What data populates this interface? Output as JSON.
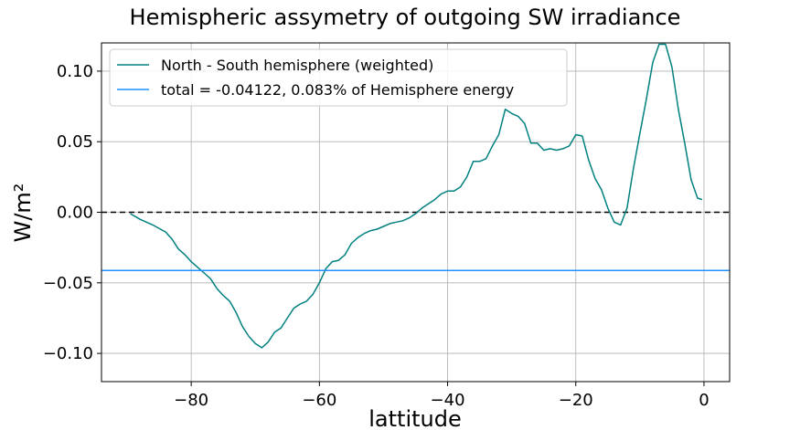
{
  "chart_data": {
    "type": "line",
    "title": "Hemispheric assymetry of outgoing SW irradiance",
    "xlabel": "lattitude",
    "ylabel": "W/m²",
    "xlim": [
      -94,
      4
    ],
    "ylim": [
      -0.12,
      0.12
    ],
    "grid": true,
    "legend_position": "top-left",
    "xticks": [
      -80,
      -60,
      -40,
      -20,
      0
    ],
    "xtick_labels": [
      "−80",
      "−60",
      "−40",
      "−20",
      "0"
    ],
    "yticks": [
      -0.1,
      -0.05,
      0.0,
      0.05,
      0.1
    ],
    "ytick_labels": [
      "−0.10",
      "−0.05",
      "0.00",
      "0.05",
      "0.10"
    ],
    "series": [
      {
        "name": "North - South hemisphere (weighted)",
        "color": "#008080",
        "x": [
          -89.5,
          -88,
          -86,
          -84,
          -83,
          -82,
          -81,
          -80,
          -79,
          -78,
          -77,
          -76,
          -75,
          -74,
          -73,
          -72,
          -71,
          -70,
          -69,
          -68,
          -67,
          -66,
          -65,
          -64,
          -63,
          -62,
          -61,
          -60,
          -59,
          -58,
          -57,
          -56,
          -55,
          -54,
          -53,
          -52,
          -51,
          -50,
          -49,
          -48,
          -47,
          -46,
          -45,
          -44,
          -43,
          -42,
          -41,
          -40,
          -39,
          -38,
          -37,
          -36,
          -35,
          -34,
          -33,
          -32,
          -31,
          -30,
          -29,
          -28,
          -27,
          -26,
          -25,
          -24,
          -23,
          -22,
          -21,
          -20,
          -19,
          -18,
          -17,
          -16,
          -15,
          -14,
          -13,
          -12,
          -11,
          -10,
          -9,
          -8,
          -7,
          -6,
          -5,
          -4,
          -3,
          -2,
          -1,
          -0.3
        ],
        "y": [
          -0.001,
          -0.005,
          -0.009,
          -0.014,
          -0.019,
          -0.026,
          -0.03,
          -0.035,
          -0.039,
          -0.043,
          -0.047,
          -0.054,
          -0.059,
          -0.063,
          -0.071,
          -0.081,
          -0.088,
          -0.093,
          -0.096,
          -0.092,
          -0.085,
          -0.082,
          -0.075,
          -0.068,
          -0.065,
          -0.063,
          -0.058,
          -0.05,
          -0.04,
          -0.035,
          -0.034,
          -0.03,
          -0.022,
          -0.018,
          -0.015,
          -0.013,
          -0.012,
          -0.01,
          -0.008,
          -0.007,
          -0.006,
          -0.004,
          -0.001,
          0.003,
          0.006,
          0.009,
          0.013,
          0.015,
          0.015,
          0.018,
          0.025,
          0.036,
          0.036,
          0.038,
          0.047,
          0.055,
          0.073,
          0.07,
          0.068,
          0.063,
          0.049,
          0.049,
          0.044,
          0.045,
          0.044,
          0.045,
          0.047,
          0.055,
          0.054,
          0.037,
          0.024,
          0.016,
          0.003,
          -0.007,
          -0.009,
          0.003,
          0.031,
          0.056,
          0.08,
          0.106,
          0.119,
          0.119,
          0.103,
          0.073,
          0.049,
          0.023,
          0.01,
          0.009
        ]
      },
      {
        "name": "total = -0.04122, 0.083% of Hemisphere energy",
        "color": "#1e90ff",
        "constant": -0.04122
      }
    ],
    "reference_line": {
      "y": 0,
      "style": "dashed",
      "color": "#000000"
    }
  }
}
